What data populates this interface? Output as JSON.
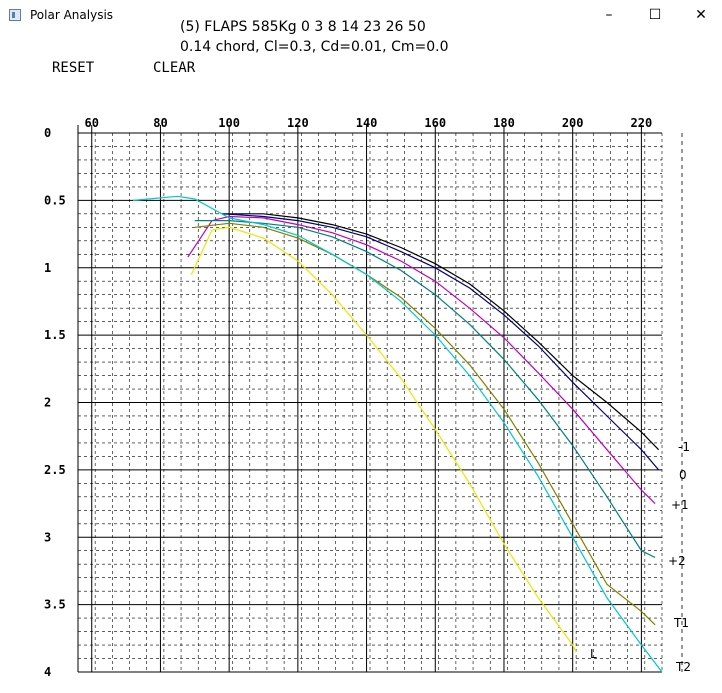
{
  "window": {
    "title": "Polar Analysis",
    "icon": "app-icon",
    "controls": [
      "minimize-icon",
      "maximize-icon",
      "close-icon"
    ]
  },
  "header": {
    "line1": "(5) FLAPS 585Kg 0 3 8 14 23 26 50",
    "line2": "0.14 chord, Cl=0.3, Cd=0.01, Cm=0.0"
  },
  "commands": {
    "reset": "RESET",
    "clear": "CLEAR"
  },
  "chart_data": {
    "type": "line",
    "title": "",
    "xlabel": "",
    "ylabel": "",
    "x_axis_position": "top",
    "y_axis_inverted": true,
    "xlim": [
      56,
      226
    ],
    "ylim": [
      0,
      4
    ],
    "x_ticks": [
      60,
      80,
      100,
      120,
      140,
      160,
      180,
      200,
      220
    ],
    "y_ticks": [
      0,
      0.5,
      1,
      1.5,
      2,
      2.5,
      3,
      3.5,
      4
    ],
    "y_tick_labels": [
      "0",
      "0.5",
      "1",
      "1.5",
      "2",
      "2.5",
      "3",
      "3.5",
      "4"
    ],
    "grid": true,
    "setting_labels": [
      "-1",
      "0",
      "+1",
      "+2",
      "T1",
      "T2",
      "L"
    ],
    "series": [
      {
        "color": "#000000",
        "x": [
          98,
          110,
          120,
          130,
          140,
          150,
          160,
          170,
          180,
          190,
          200,
          210,
          220,
          225
        ],
        "y": [
          0.6,
          0.6,
          0.63,
          0.68,
          0.75,
          0.85,
          0.97,
          1.12,
          1.32,
          1.55,
          1.8,
          2.0,
          2.22,
          2.35
        ]
      },
      {
        "color": "#000080",
        "x": [
          98,
          110,
          120,
          130,
          140,
          150,
          160,
          170,
          180,
          190,
          200,
          210,
          220,
          225
        ],
        "y": [
          0.6,
          0.62,
          0.65,
          0.7,
          0.77,
          0.88,
          1.0,
          1.15,
          1.35,
          1.58,
          1.85,
          2.1,
          2.35,
          2.5
        ]
      },
      {
        "color": "#c000c0",
        "x": [
          88,
          95,
          100,
          110,
          120,
          130,
          140,
          150,
          160,
          170,
          180,
          190,
          200,
          210,
          220,
          224
        ],
        "y": [
          0.92,
          0.65,
          0.62,
          0.63,
          0.68,
          0.74,
          0.83,
          0.95,
          1.1,
          1.3,
          1.52,
          1.78,
          2.05,
          2.35,
          2.65,
          2.75
        ]
      },
      {
        "color": "#008080",
        "x": [
          90,
          100,
          110,
          120,
          130,
          140,
          150,
          160,
          170,
          180,
          190,
          200,
          210,
          220,
          224
        ],
        "y": [
          0.65,
          0.65,
          0.67,
          0.7,
          0.77,
          0.88,
          1.02,
          1.2,
          1.42,
          1.68,
          1.98,
          2.32,
          2.7,
          3.1,
          3.15
        ]
      },
      {
        "color": "#808000",
        "x": [
          90,
          100,
          110,
          120,
          130,
          140,
          150,
          160,
          170,
          180,
          190,
          200,
          210,
          220,
          224
        ],
        "y": [
          0.7,
          0.67,
          0.7,
          0.78,
          0.9,
          1.05,
          1.22,
          1.45,
          1.72,
          2.05,
          2.45,
          2.9,
          3.35,
          3.55,
          3.65
        ]
      },
      {
        "color": "#00c8c8",
        "x": [
          72,
          85,
          90,
          100,
          110,
          120,
          130,
          140,
          150,
          160,
          170,
          180,
          190,
          200,
          210,
          220,
          226
        ],
        "y": [
          0.5,
          0.47,
          0.49,
          0.63,
          0.68,
          0.76,
          0.9,
          1.05,
          1.25,
          1.5,
          1.8,
          2.15,
          2.55,
          3.0,
          3.45,
          3.8,
          4.0
        ]
      },
      {
        "color": "#e8e800",
        "x": [
          89,
          95,
          100,
          110,
          120,
          130,
          140,
          150,
          160,
          170,
          180,
          190,
          200,
          201
        ],
        "y": [
          1.05,
          0.72,
          0.7,
          0.78,
          0.95,
          1.2,
          1.5,
          1.82,
          2.2,
          2.6,
          3.05,
          3.45,
          3.8,
          3.85
        ]
      }
    ]
  }
}
